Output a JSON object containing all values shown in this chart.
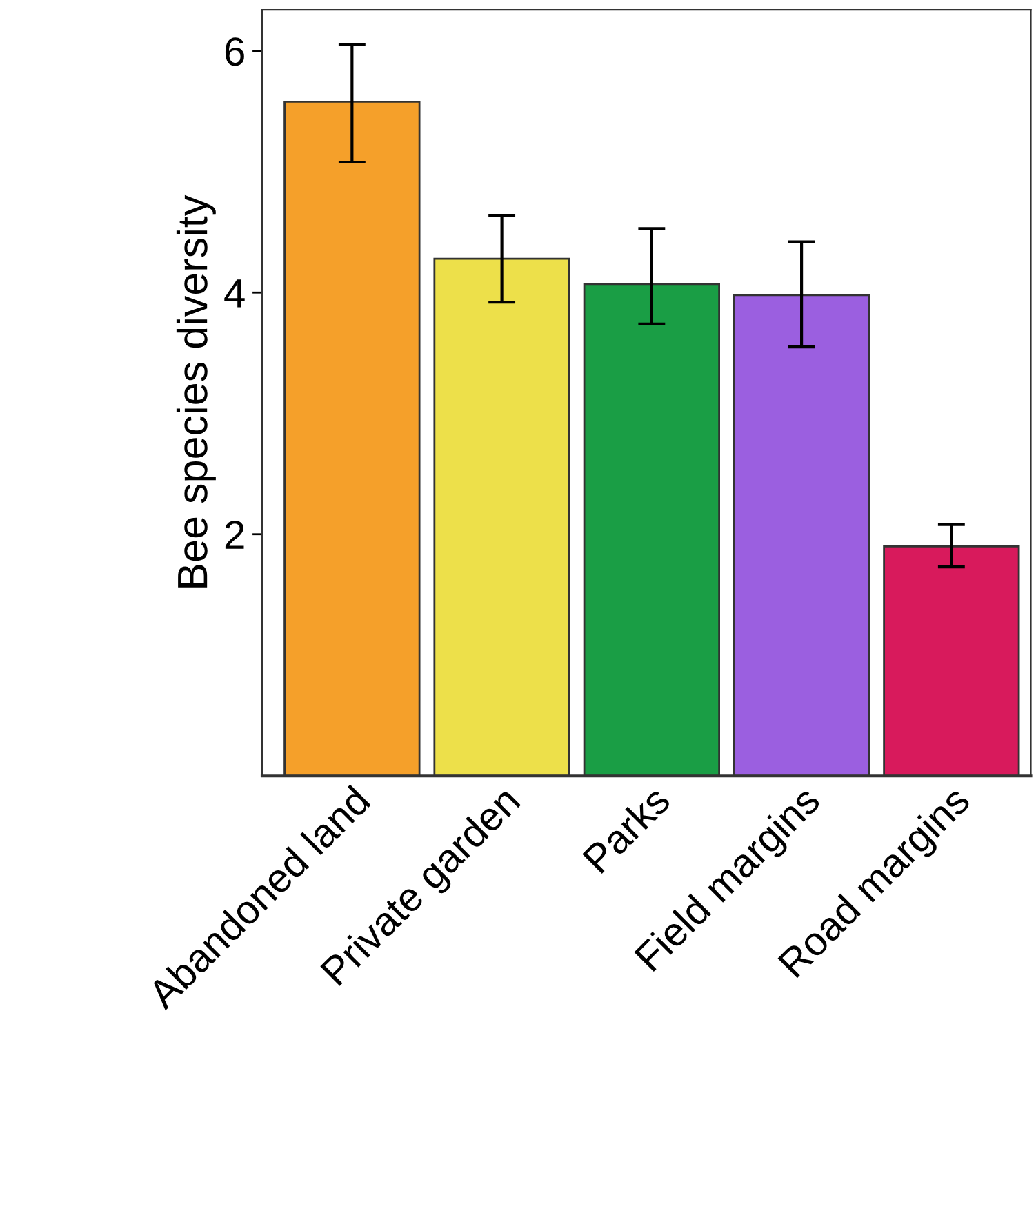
{
  "chart_data": {
    "type": "bar",
    "ylabel": "Bee species diversity",
    "categories": [
      "Abandoned land",
      "Private garden",
      "Parks",
      "Field margins",
      "Road margins"
    ],
    "values": [
      5.58,
      4.28,
      4.07,
      3.98,
      1.9
    ],
    "errors": [
      [
        5.08,
        6.05
      ],
      [
        3.92,
        4.64
      ],
      [
        3.74,
        4.53
      ],
      [
        3.55,
        4.42
      ],
      [
        1.73,
        2.08
      ]
    ],
    "colors": [
      "#f5a02a",
      "#ede04a",
      "#1a9e45",
      "#9b5fe0",
      "#d81a5c"
    ],
    "ylim": [
      0,
      6.34
    ],
    "yticks": [
      2,
      4,
      6
    ],
    "grid": false
  }
}
